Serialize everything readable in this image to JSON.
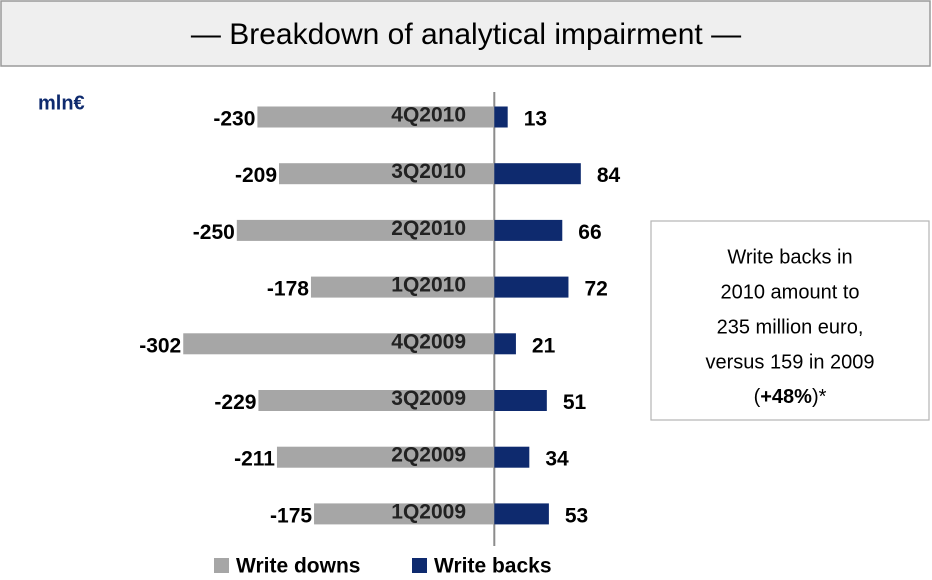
{
  "chart_data": {
    "type": "bar",
    "orientation": "horizontal",
    "title": "— Breakdown of analytical impairment —",
    "unit_label": "mln€",
    "categories": [
      "4Q2010",
      "3Q2010",
      "2Q2010",
      "1Q2010",
      "4Q2009",
      "3Q2009",
      "2Q2009",
      "1Q2009"
    ],
    "series": [
      {
        "name": "Write downs",
        "color": "#a6a6a6",
        "values": [
          -230,
          -209,
          -250,
          -178,
          -302,
          -229,
          -211,
          -175
        ]
      },
      {
        "name": "Write backs",
        "color": "#0e2a6e",
        "values": [
          13,
          84,
          66,
          72,
          21,
          51,
          34,
          53
        ]
      }
    ],
    "xlim": [
      -310,
      90
    ],
    "annotation": {
      "lines": [
        "Write backs in",
        "2010 amount to",
        "235 million euro,",
        "versus 159 in 2009"
      ],
      "last_line": [
        "(",
        "+48%",
        ")*"
      ]
    }
  }
}
